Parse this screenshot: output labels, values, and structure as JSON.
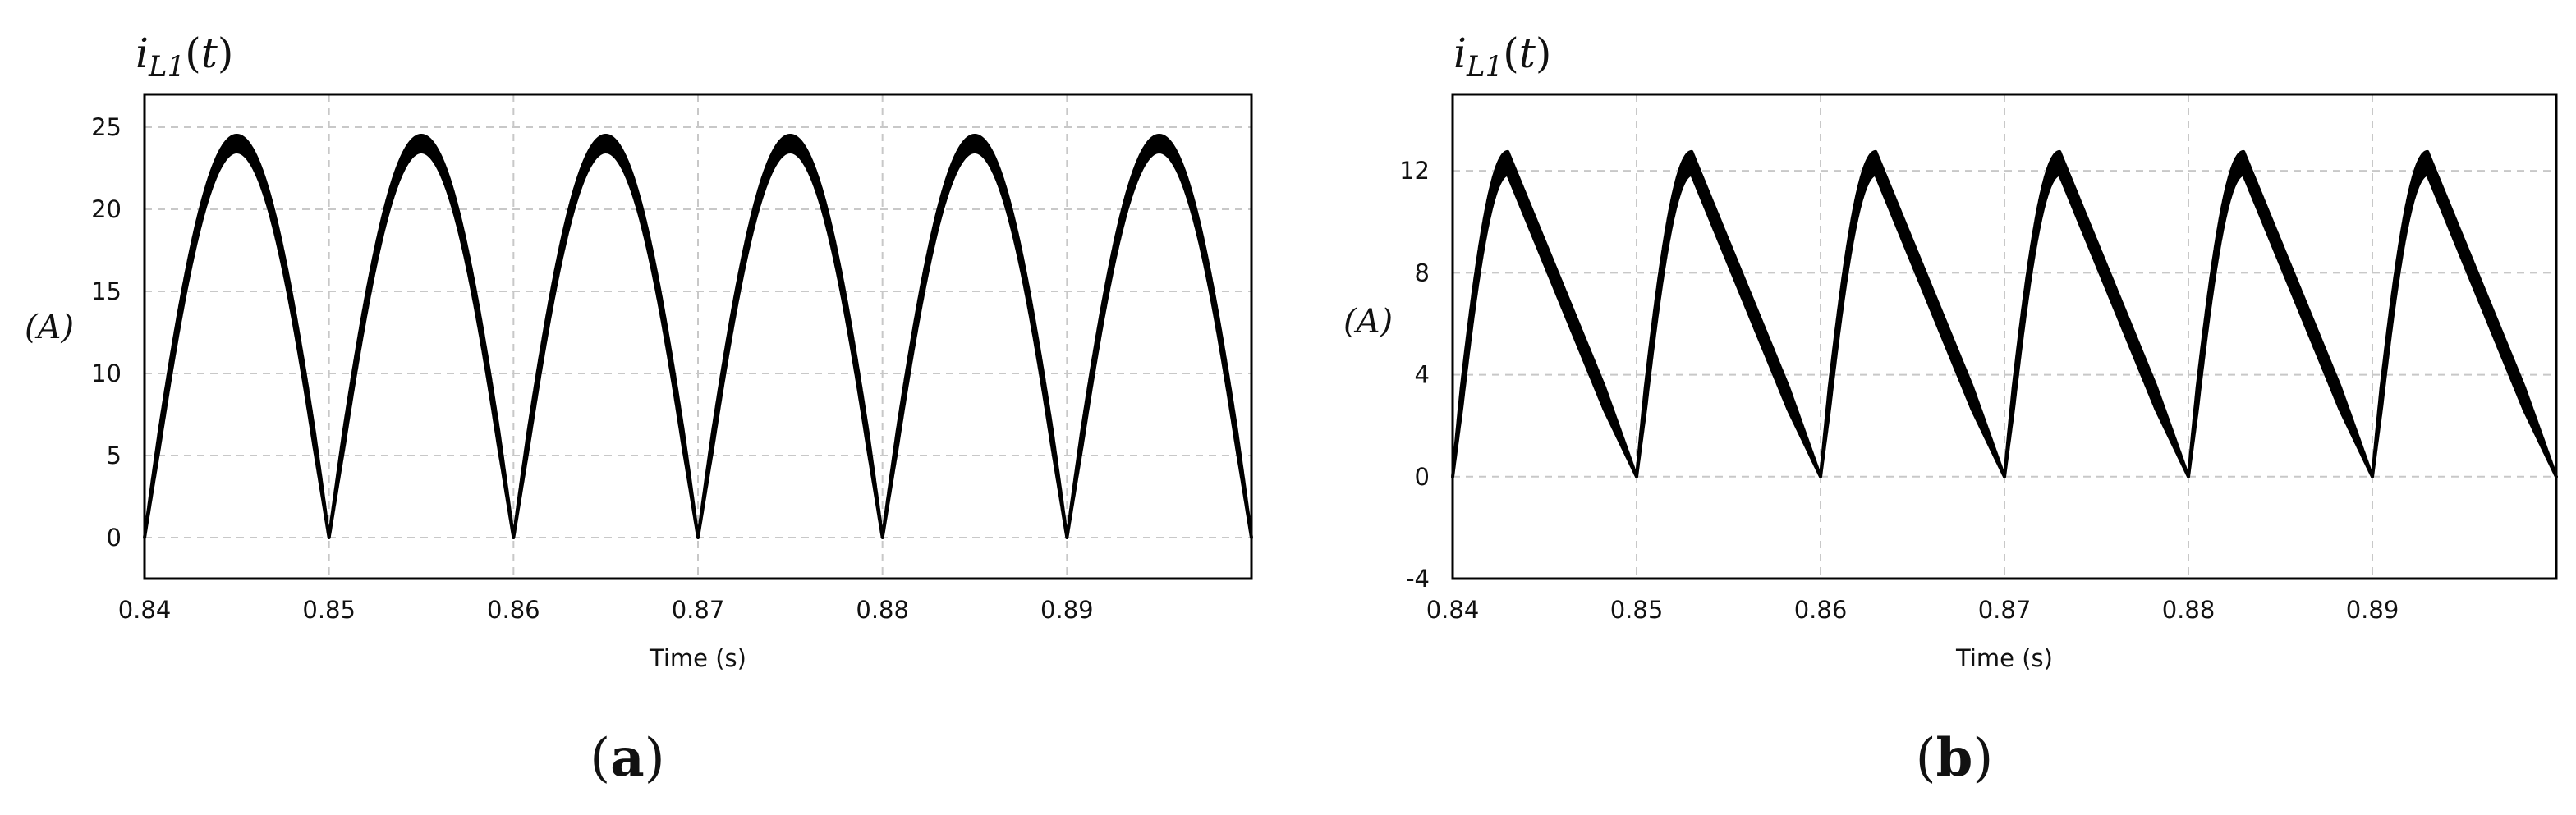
{
  "chart_data": [
    {
      "type": "line",
      "panel_label": "(a)",
      "ylabel_top": "i_L1(t)",
      "ylabel_side": "(A)",
      "xlabel": "Time (s)",
      "xlim": [
        0.84,
        0.9
      ],
      "ylim": [
        -2.5,
        27
      ],
      "xticks": [
        "0.84",
        "0.85",
        "0.86",
        "0.87",
        "0.88",
        "0.89"
      ],
      "yticks": [
        "0",
        "5",
        "10",
        "15",
        "20",
        "25"
      ],
      "grid": true,
      "waveform": "rectified-sine",
      "period_s": 0.01,
      "peak_A": 24,
      "ripple_A": 1.0,
      "peak_times_s": [
        0.845,
        0.855,
        0.865,
        0.875,
        0.885,
        0.895
      ],
      "zero_times_s": [
        0.84,
        0.85,
        0.86,
        0.87,
        0.88,
        0.89,
        0.9
      ]
    },
    {
      "type": "line",
      "panel_label": "(b)",
      "ylabel_top": "i_L1(t)",
      "ylabel_side": "(A)",
      "xlabel": "Time (s)",
      "xlim": [
        0.84,
        0.9
      ],
      "ylim": [
        -4,
        15
      ],
      "xticks": [
        "0.84",
        "0.85",
        "0.86",
        "0.87",
        "0.88",
        "0.89"
      ],
      "yticks": [
        "-4",
        "0",
        "4",
        "8",
        "12"
      ],
      "grid": true,
      "waveform": "triangular-rectified",
      "period_s": 0.01,
      "peak_A": 12.3,
      "ripple_A": 0.9,
      "peak_times_s": [
        0.8443,
        0.8543,
        0.8643,
        0.8743,
        0.8843,
        0.8943
      ],
      "zero_times_s": [
        0.84,
        0.85,
        0.86,
        0.87,
        0.88,
        0.89
      ]
    }
  ]
}
